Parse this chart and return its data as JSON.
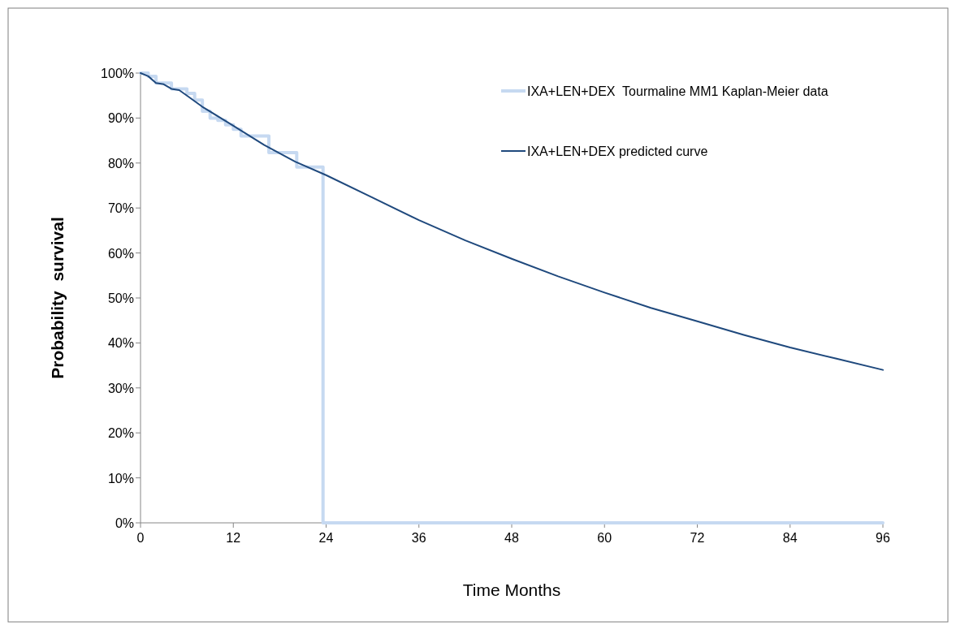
{
  "chart_data": {
    "type": "line",
    "xlabel": "Time Months",
    "ylabel": "Probability  survival",
    "xlim": [
      0,
      96
    ],
    "xticks": [
      0,
      12,
      24,
      36,
      48,
      60,
      72,
      84,
      96
    ],
    "ylim": [
      0,
      100
    ],
    "yticks": [
      {
        "value": 0,
        "label": "0%"
      },
      {
        "value": 10,
        "label": "10%"
      },
      {
        "value": 20,
        "label": "20%"
      },
      {
        "value": 30,
        "label": "30%"
      },
      {
        "value": 40,
        "label": "40%"
      },
      {
        "value": 50,
        "label": "50%"
      },
      {
        "value": 60,
        "label": "60%"
      },
      {
        "value": 70,
        "label": "70%"
      },
      {
        "value": 80,
        "label": "80%"
      },
      {
        "value": 90,
        "label": "90%"
      },
      {
        "value": 100,
        "label": "100%"
      }
    ],
    "grid": false,
    "legend": "top right",
    "marker": "none",
    "line_style": "solid",
    "series": [
      {
        "name": "IXA+LEN+DEX  Tourmaline MM1 Kaplan-Meier data",
        "type": "step",
        "color": "#c6d9f1",
        "x": [
          0,
          1,
          2,
          4,
          6,
          7,
          8,
          9,
          10,
          11,
          12,
          13,
          16.6,
          20.2,
          23.6,
          96
        ],
        "values": [
          100,
          99.3,
          97.8,
          96.5,
          95.5,
          94,
          91.5,
          90,
          89.5,
          88.5,
          87.5,
          86,
          82.3,
          79.1,
          0,
          0
        ]
      },
      {
        "name": "IXA+LEN+DEX predicted curve",
        "color": "#1f497d",
        "x": [
          0,
          1,
          2,
          3,
          4,
          5,
          6,
          8,
          12,
          16,
          20,
          24,
          30,
          36,
          42,
          48,
          54,
          60,
          66,
          72,
          78,
          84,
          90,
          96
        ],
        "values": [
          100,
          99.3,
          97.8,
          97.5,
          96.5,
          96.2,
          95,
          92.5,
          88.3,
          84,
          80.3,
          77.3,
          72.3,
          67.3,
          62.8,
          58.7,
          54.8,
          51.2,
          47.8,
          44.8,
          41.8,
          39,
          36.5,
          34
        ]
      }
    ]
  }
}
